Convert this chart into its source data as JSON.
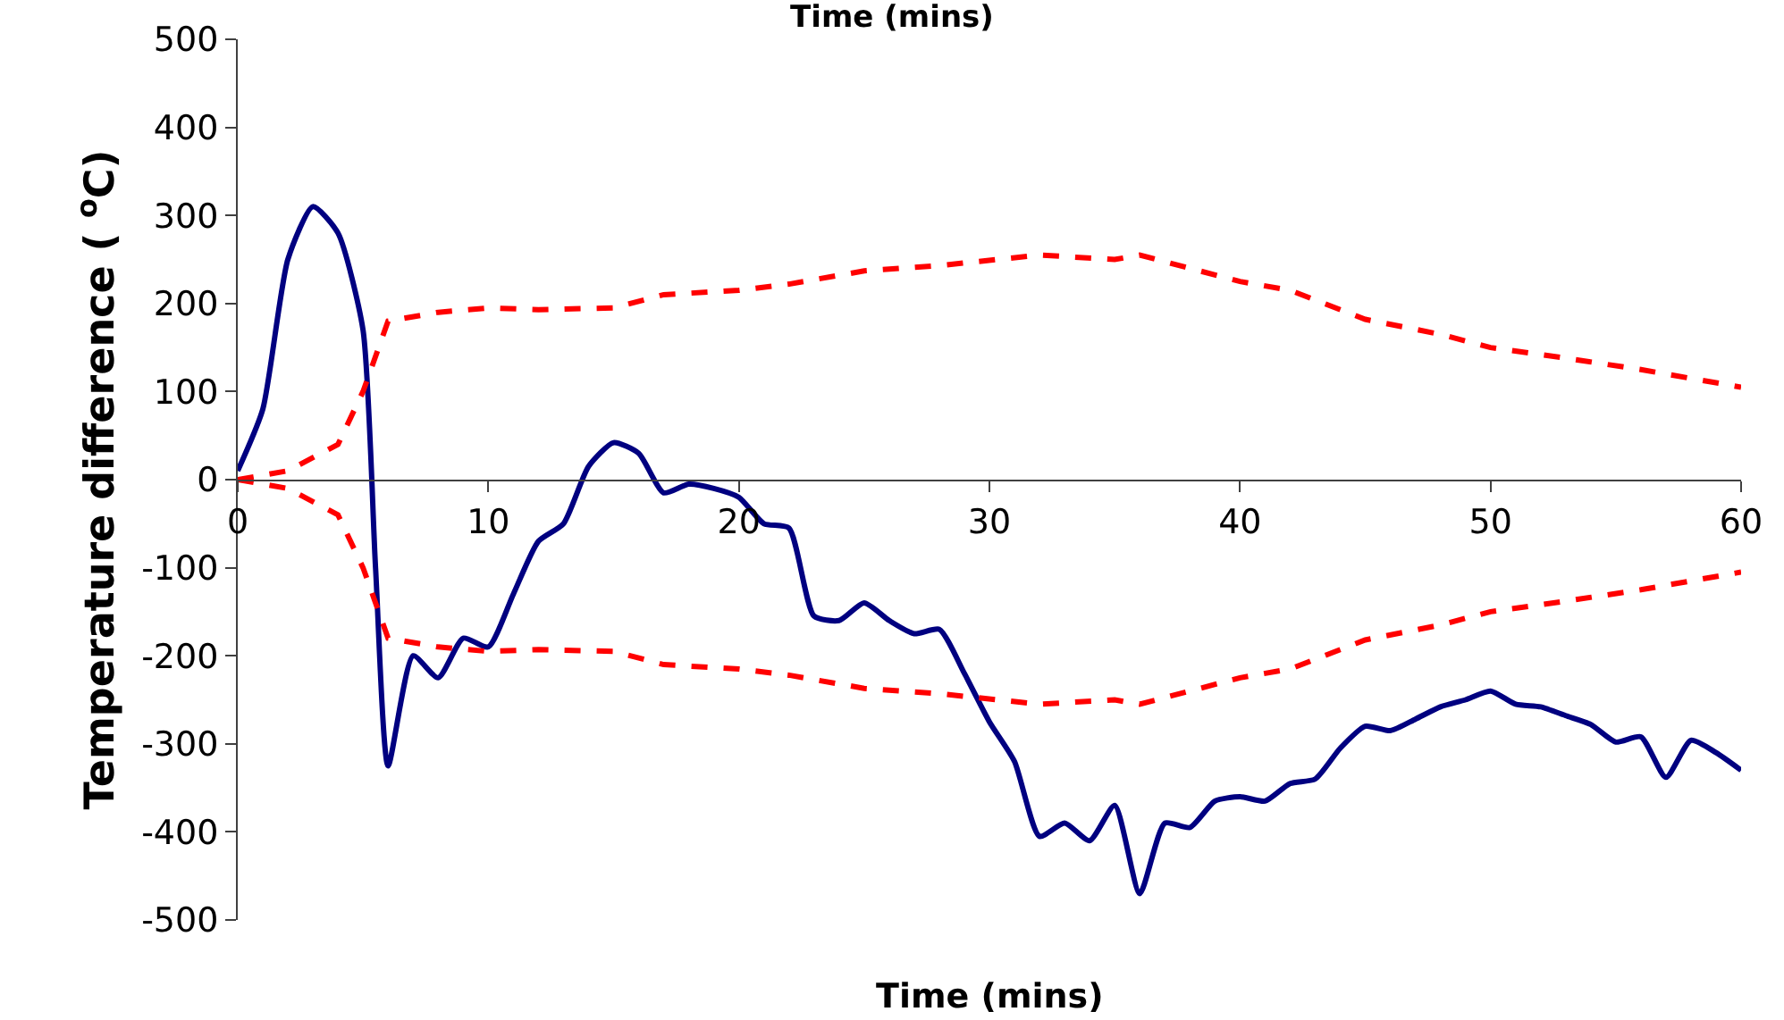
{
  "chart_data": {
    "type": "line",
    "title": "Time (mins)",
    "xlabel": "Time (mins)",
    "ylabel": "Temperature difference ( $^{o}$C)",
    "xlim": [
      0,
      60
    ],
    "xticks": [
      0,
      10,
      20,
      30,
      40,
      50,
      60
    ],
    "ylim": [
      -500,
      500
    ],
    "yticks": [
      -500,
      -400,
      -300,
      -200,
      -100,
      0,
      100,
      200,
      300,
      400,
      500
    ],
    "series": [
      {
        "color": "#000080",
        "line_style": "solid",
        "x": [
          0,
          1,
          2,
          3,
          4,
          5,
          5.5,
          6,
          7,
          8,
          9,
          10,
          11,
          12,
          13,
          14,
          15,
          16,
          17,
          18,
          19,
          20,
          21,
          22,
          23,
          24,
          25,
          26,
          27,
          28,
          29,
          30,
          31,
          32,
          33,
          34,
          35,
          36,
          37,
          38,
          39,
          40,
          41,
          42,
          43,
          44,
          45,
          46,
          47,
          48,
          49,
          50,
          51,
          52,
          53,
          54,
          55,
          56,
          57,
          58,
          59,
          60
        ],
        "values": [
          10,
          80,
          250,
          310,
          280,
          170,
          -100,
          -325,
          -200,
          -225,
          -180,
          -190,
          -130,
          -70,
          -50,
          15,
          42,
          30,
          -15,
          -5,
          -10,
          -20,
          -50,
          -55,
          -155,
          -160,
          -140,
          -160,
          -175,
          -170,
          -220,
          -275,
          -320,
          -405,
          -390,
          -410,
          -370,
          -470,
          -390,
          -395,
          -365,
          -360,
          -365,
          -345,
          -340,
          -305,
          -280,
          -285,
          -272,
          -258,
          -250,
          -240,
          -255,
          -258,
          -268,
          -278,
          -298,
          -292,
          -338,
          -296,
          -310,
          -330
        ]
      },
      {
        "color": "#ff0000",
        "line_style": "dashed",
        "x": [
          0,
          2,
          4,
          5,
          6,
          8,
          10,
          12,
          15,
          17,
          20,
          22,
          25,
          28,
          32,
          35,
          36,
          40,
          42,
          45,
          48,
          50,
          53,
          56,
          60
        ],
        "values": [
          0,
          10,
          40,
          100,
          180,
          190,
          195,
          193,
          195,
          210,
          215,
          222,
          237,
          243,
          255,
          250,
          255,
          225,
          215,
          182,
          165,
          150,
          138,
          125,
          105
        ]
      },
      {
        "color": "#ff0000",
        "line_style": "dashed",
        "x": [
          0,
          2,
          4,
          5,
          6,
          8,
          10,
          12,
          15,
          17,
          20,
          22,
          25,
          28,
          32,
          35,
          36,
          40,
          42,
          45,
          48,
          50,
          53,
          56,
          60
        ],
        "values": [
          0,
          -10,
          -40,
          -100,
          -180,
          -190,
          -195,
          -193,
          -195,
          -210,
          -215,
          -222,
          -237,
          -243,
          -255,
          -250,
          -255,
          -225,
          -215,
          -182,
          -165,
          -150,
          -138,
          -125,
          -105
        ]
      }
    ]
  }
}
